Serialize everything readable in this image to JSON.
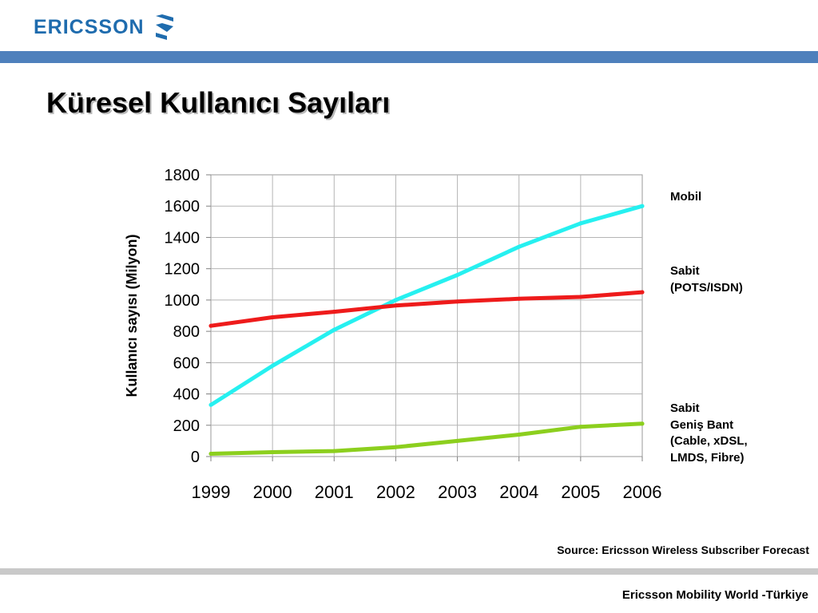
{
  "header": {
    "logo_text": "ERICSSON",
    "title": "Küresel Kullanıcı Sayıları"
  },
  "colors": {
    "brand_blue": "#1f6cae",
    "top_bar": "#4e80bc",
    "bottom_bar": "#c9c9c9"
  },
  "chart_data": {
    "type": "line",
    "x": [
      "1999",
      "2000",
      "2001",
      "2002",
      "2003",
      "2004",
      "2005",
      "2006"
    ],
    "ylabel": "Kullanıcı sayısı (Milyon)",
    "ylim": [
      0,
      1800
    ],
    "yticks": [
      0,
      200,
      400,
      600,
      800,
      1000,
      1200,
      1400,
      1600,
      1800
    ],
    "grid": true,
    "legend_position": "right",
    "series": [
      {
        "name": "Mobil",
        "color": "#26f0f0",
        "values": [
          330,
          580,
          810,
          1000,
          1160,
          1340,
          1490,
          1600
        ]
      },
      {
        "name": "Sabit\n(POTS/ISDN)",
        "color": "#ee1b1b",
        "values": [
          835,
          890,
          925,
          965,
          990,
          1008,
          1020,
          1050
        ]
      },
      {
        "name": "Sabit\nGeniş Bant\n(Cable, xDSL,\nLMDS, Fibre)",
        "color": "#8ccf1e",
        "values": [
          18,
          28,
          35,
          60,
          100,
          140,
          190,
          210
        ]
      }
    ]
  },
  "source": "Source: Ericsson Wireless Subscriber Forecast",
  "footer": "Ericsson Mobility World -Türkiye"
}
